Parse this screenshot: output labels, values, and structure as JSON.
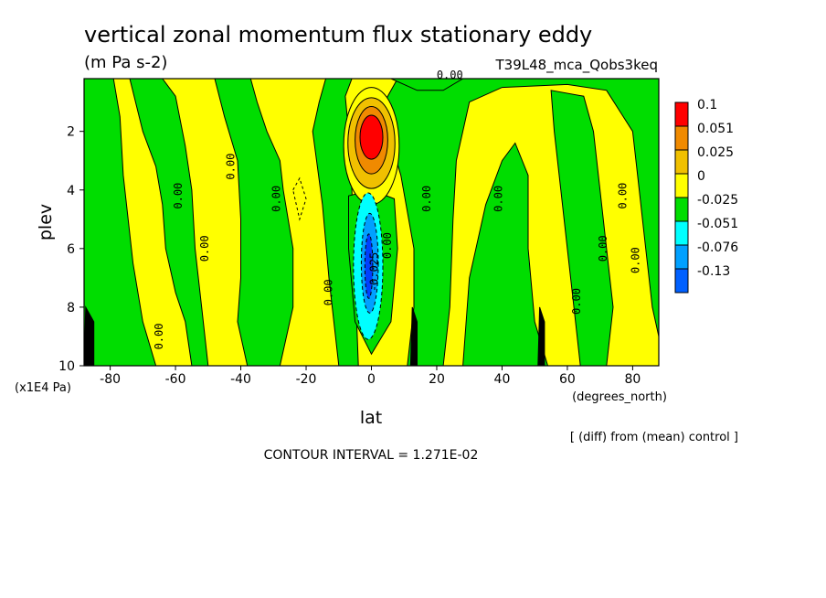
{
  "chart_data": {
    "type": "heatmap",
    "title": "vertical zonal momentum flux stationary eddy",
    "units": "(m Pa s-2)",
    "experiment": "T39L48_mca_Qobs3keq",
    "xlabel": "lat",
    "x_units": "(degrees_north)",
    "ylabel": "plev",
    "y_units": "(x1E4 Pa)",
    "xlim": [
      -88,
      88
    ],
    "ylim": [
      10,
      0.2
    ],
    "x_ticks": [
      -80,
      -60,
      -40,
      -20,
      0,
      20,
      40,
      60,
      80
    ],
    "y_ticks": [
      2,
      4,
      6,
      8,
      10
    ],
    "x_tick_labels": [
      "-80",
      "-60",
      "-40",
      "-20",
      "0",
      "20",
      "40",
      "60",
      "80"
    ],
    "y_tick_labels": [
      "2",
      "4",
      "6",
      "8",
      "10"
    ],
    "colorbar": {
      "colors": [
        "#ff0000",
        "#f08a00",
        "#f0c000",
        "#ffff00",
        "#00dd00",
        "#00ffff",
        "#00a0ff",
        "#0060ff"
      ],
      "labels": [
        "0.1",
        "0.051",
        "0.025",
        "0",
        "-0.025",
        "-0.051",
        "-0.076",
        "-0.13"
      ]
    },
    "contour_labels": [
      {
        "text": "0.00",
        "lat": 24,
        "plev": 0.2
      },
      {
        "text": "0.00",
        "lat": -58,
        "plev": 4.2
      },
      {
        "text": "0.00",
        "lat": -50,
        "plev": 6.0
      },
      {
        "text": "0.00",
        "lat": -42,
        "plev": 3.2
      },
      {
        "text": "0.00",
        "lat": -28,
        "plev": 4.3
      },
      {
        "text": "0.00",
        "lat": -64,
        "plev": 9.0
      },
      {
        "text": "0.00",
        "lat": -12,
        "plev": 7.5
      },
      {
        "text": "0.00",
        "lat": 6,
        "plev": 5.9
      },
      {
        "text": "0.00",
        "lat": 18,
        "plev": 4.3
      },
      {
        "text": "0.00",
        "lat": 40,
        "plev": 4.3
      },
      {
        "text": "0.00",
        "lat": 64,
        "plev": 7.8
      },
      {
        "text": "0.00",
        "lat": 72,
        "plev": 6.0
      },
      {
        "text": "0.00",
        "lat": 78,
        "plev": 4.2
      },
      {
        "text": "0.00",
        "lat": 82,
        "plev": 6.4
      },
      {
        "text": "-0.025",
        "lat": 2,
        "plev": 6.8
      }
    ],
    "features": [
      {
        "name": "positive maximum",
        "lat": 0,
        "plev": 2.4,
        "value_range": ">0.1"
      },
      {
        "name": "negative minimum",
        "lat": 0,
        "plev": 6.5,
        "value_range": "<-0.025"
      }
    ]
  },
  "annotations": {
    "note": "[ (diff) from (mean) control ]",
    "contour_interval": "CONTOUR INTERVAL = 1.271E-02"
  }
}
